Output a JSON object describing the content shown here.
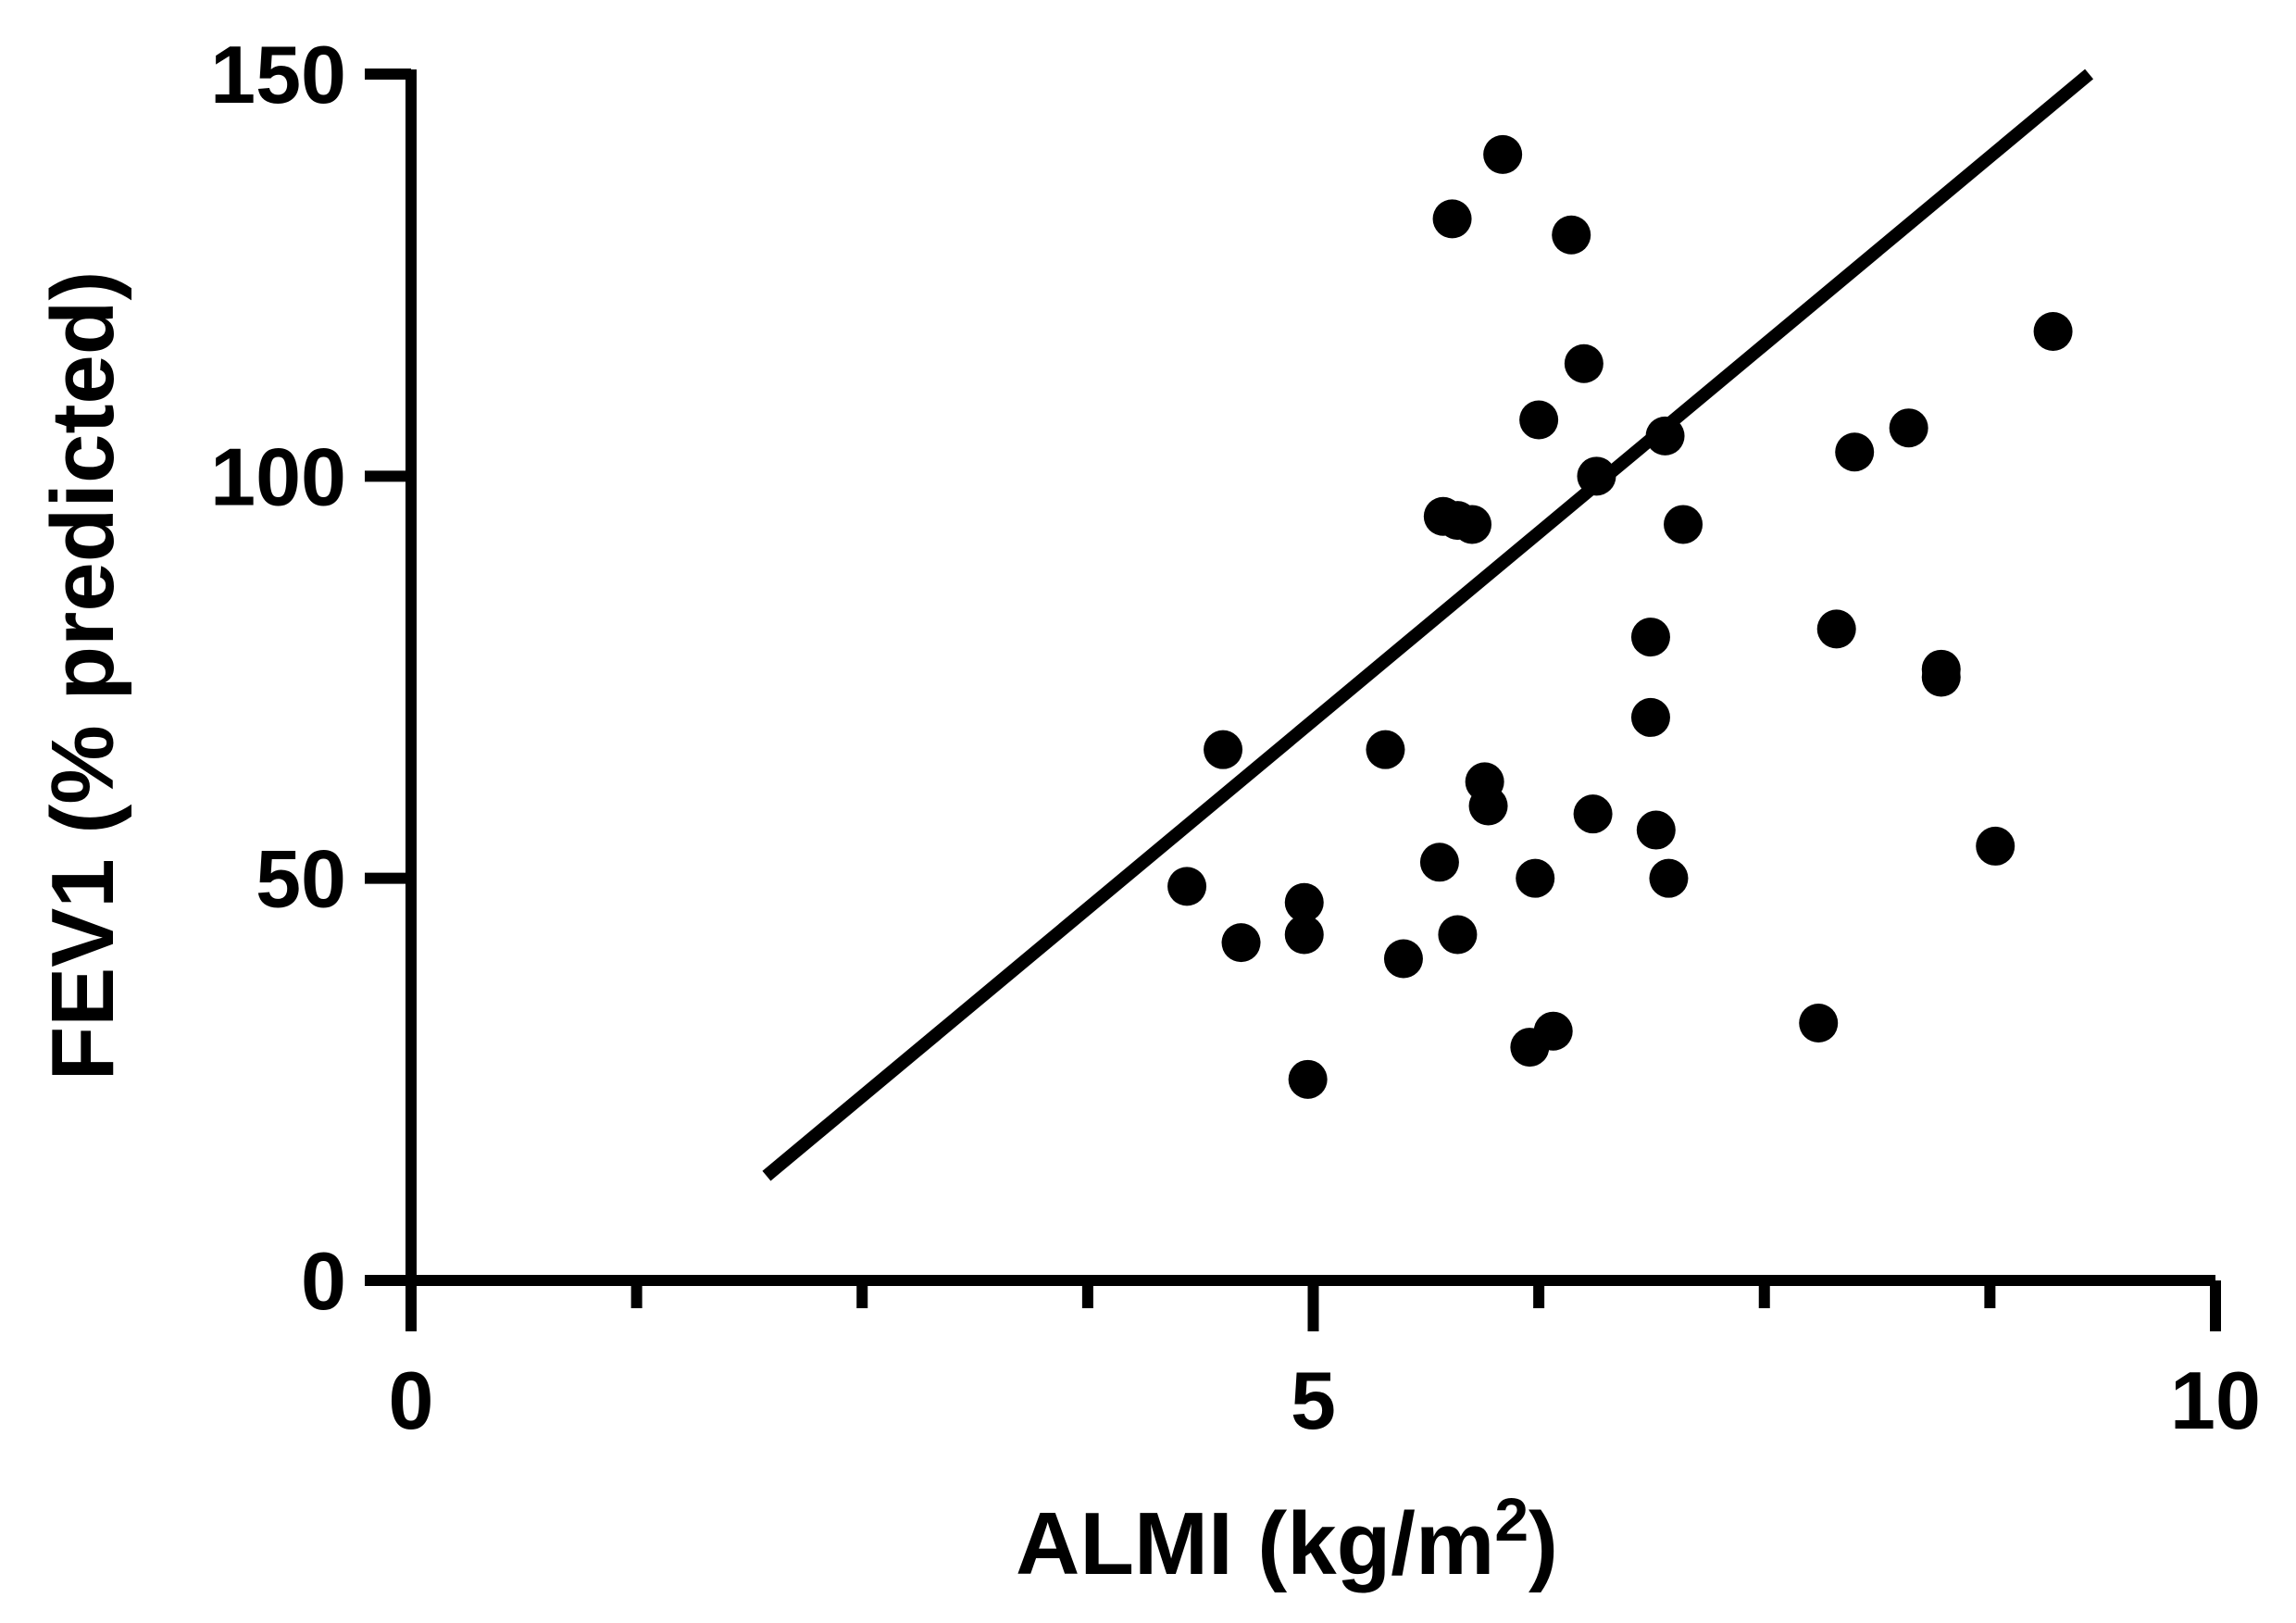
{
  "chart_data": {
    "type": "scatter",
    "title": "",
    "xlabel": "ALMI (kg/m",
    "xlabel_superscript": "2",
    "xlabel_suffix": ")",
    "ylabel": "FEV1 (% predicted)",
    "xlim": [
      0,
      10
    ],
    "ylim": [
      0,
      150
    ],
    "x_major_ticks": [
      0,
      5,
      10
    ],
    "x_tick_labels": [
      "0",
      "5",
      "10"
    ],
    "x_minor_ticks": [
      1.25,
      2.5,
      3.75,
      6.25,
      7.5,
      8.75
    ],
    "y_ticks": [
      0,
      50,
      100,
      150
    ],
    "y_tick_labels": [
      "0",
      "50",
      "100",
      "150"
    ],
    "grid": false,
    "legend": "none",
    "marker_color": "#000000",
    "line_color": "#000000",
    "points": [
      {
        "x": 4.3,
        "y": 49
      },
      {
        "x": 4.5,
        "y": 66
      },
      {
        "x": 4.6,
        "y": 42
      },
      {
        "x": 4.95,
        "y": 47
      },
      {
        "x": 4.95,
        "y": 43
      },
      {
        "x": 4.97,
        "y": 25
      },
      {
        "x": 5.4,
        "y": 66
      },
      {
        "x": 5.5,
        "y": 40
      },
      {
        "x": 5.7,
        "y": 52
      },
      {
        "x": 5.72,
        "y": 95
      },
      {
        "x": 5.77,
        "y": 132
      },
      {
        "x": 5.8,
        "y": 43
      },
      {
        "x": 5.8,
        "y": 94.5
      },
      {
        "x": 5.88,
        "y": 94
      },
      {
        "x": 5.95,
        "y": 62
      },
      {
        "x": 5.97,
        "y": 59
      },
      {
        "x": 6.05,
        "y": 140
      },
      {
        "x": 6.2,
        "y": 29
      },
      {
        "x": 6.23,
        "y": 50
      },
      {
        "x": 6.25,
        "y": 107
      },
      {
        "x": 6.33,
        "y": 31
      },
      {
        "x": 6.43,
        "y": 130
      },
      {
        "x": 6.5,
        "y": 114
      },
      {
        "x": 6.55,
        "y": 58
      },
      {
        "x": 6.57,
        "y": 100
      },
      {
        "x": 6.87,
        "y": 70
      },
      {
        "x": 6.87,
        "y": 80
      },
      {
        "x": 6.9,
        "y": 56
      },
      {
        "x": 6.95,
        "y": 105
      },
      {
        "x": 6.97,
        "y": 50
      },
      {
        "x": 7.05,
        "y": 94
      },
      {
        "x": 7.8,
        "y": 32
      },
      {
        "x": 7.9,
        "y": 81
      },
      {
        "x": 8.0,
        "y": 103
      },
      {
        "x": 8.3,
        "y": 106
      },
      {
        "x": 8.48,
        "y": 75
      },
      {
        "x": 8.48,
        "y": 76
      },
      {
        "x": 8.78,
        "y": 54
      },
      {
        "x": 9.1,
        "y": 118
      }
    ],
    "regression_line": {
      "x": [
        1.97,
        9.3
      ],
      "y": [
        13,
        150
      ]
    }
  }
}
